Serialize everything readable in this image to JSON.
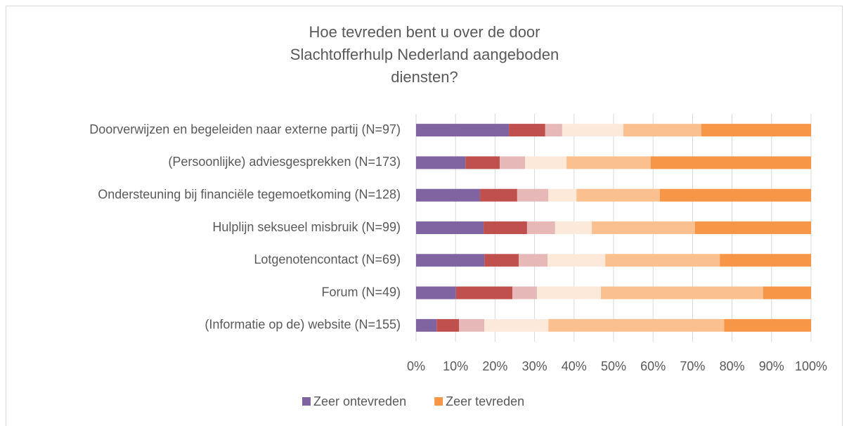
{
  "chart_data": {
    "type": "stacked_barh",
    "title": "Hoe tevreden bent u over de door Slachtofferhulp Nederland aangeboden diensten?",
    "categories": [
      "Doorverwijzen en begeleiden naar externe partij (N=97)",
      "(Persoonlijke) adviesgesprekken (N=173)",
      "Ondersteuning bij financiële tegemoetkoming (N=128)",
      "Hulplijn seksueel misbruik (N=99)",
      "Lotgenotencontact (N=69)",
      "Forum (N=49)",
      "(Informatie op de) website (N=155)"
    ],
    "series": [
      {
        "name": "Zeer ontevreden",
        "color": "#8064a2",
        "values": [
          23.5,
          12.5,
          16.2,
          17.1,
          17.3,
          10.1,
          5.2
        ]
      },
      {
        "color": "#c0504d",
        "values": [
          9.2,
          8.7,
          9.4,
          11.0,
          8.7,
          14.3,
          5.7
        ]
      },
      {
        "color": "#e6b9b8",
        "values": [
          4.3,
          6.4,
          7.9,
          7.1,
          7.3,
          6.2,
          6.4
        ]
      },
      {
        "color": "#fde9d9",
        "values": [
          15.5,
          10.5,
          7.1,
          9.3,
          14.6,
          16.2,
          16.2
        ]
      },
      {
        "color": "#fac090",
        "values": [
          19.7,
          21.3,
          21.1,
          26.1,
          29.0,
          41.1,
          44.5
        ]
      },
      {
        "name": "Zeer tevreden",
        "color": "#f79646",
        "values": [
          27.8,
          40.6,
          38.3,
          29.4,
          23.1,
          12.1,
          22.0
        ]
      }
    ],
    "xlim": [
      0,
      100
    ],
    "xticks": [
      {
        "value": 0,
        "label": "0%"
      },
      {
        "value": 10,
        "label": "10%"
      },
      {
        "value": 20,
        "label": "20%"
      },
      {
        "value": 30,
        "label": "30%"
      },
      {
        "value": 40,
        "label": "40%"
      },
      {
        "value": 50,
        "label": "50%"
      },
      {
        "value": 60,
        "label": "60%"
      },
      {
        "value": 70,
        "label": "70%"
      },
      {
        "value": 80,
        "label": "80%"
      },
      {
        "value": 90,
        "label": "90%"
      },
      {
        "value": 100,
        "label": "100%"
      }
    ],
    "grid": true,
    "legend": "bottom"
  }
}
